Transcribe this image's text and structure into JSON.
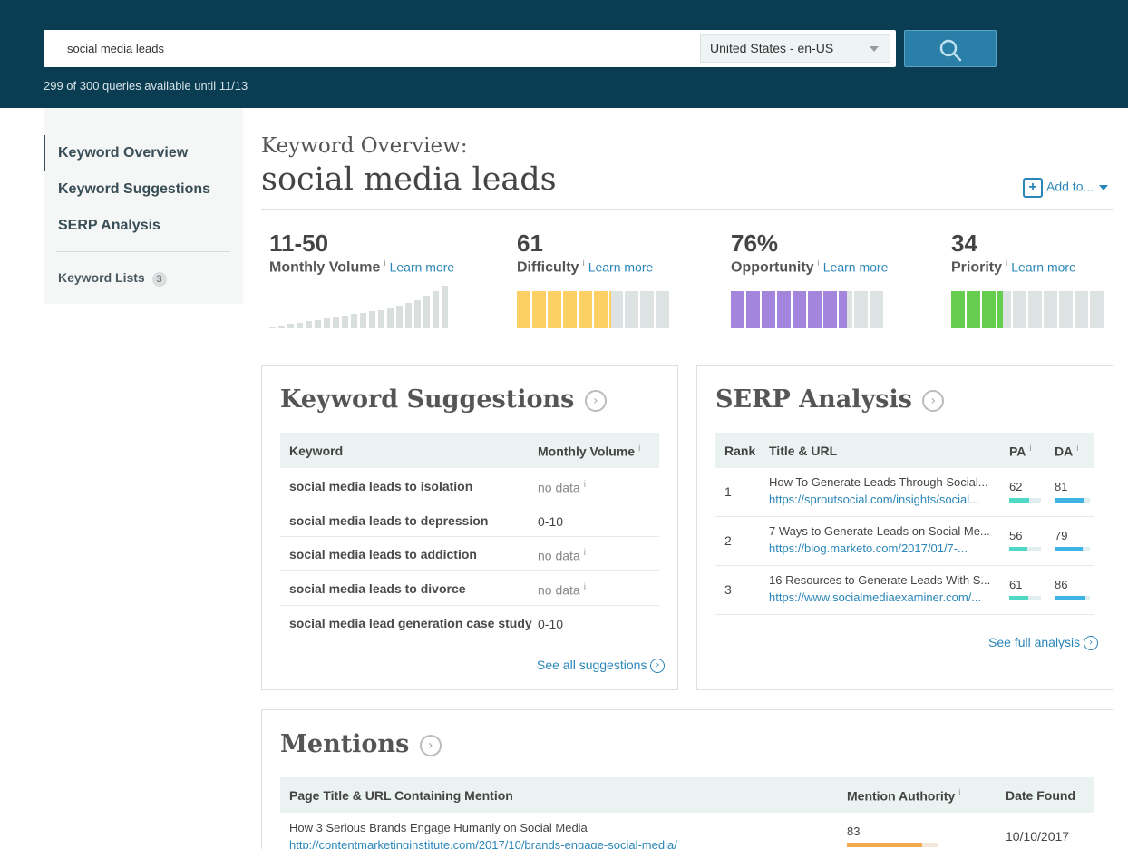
{
  "header": {
    "search_value": "social media leads",
    "locale": "United States - en-US",
    "quota": "299 of 300 queries available until 11/13"
  },
  "sidebar": {
    "items": [
      {
        "label": "Keyword Overview",
        "active": true
      },
      {
        "label": "Keyword Suggestions"
      },
      {
        "label": "SERP Analysis"
      }
    ],
    "lists_label": "Keyword Lists",
    "lists_count": "3"
  },
  "overview": {
    "label": "Keyword Overview:",
    "keyword": "social media leads",
    "add_to": "Add to..."
  },
  "metrics": {
    "info": "i",
    "learn_more": "Learn more",
    "volume": {
      "value": "11-50",
      "label": "Monthly Volume"
    },
    "difficulty": {
      "value": "61",
      "label": "Difficulty",
      "level": 0.61,
      "color": "#fdd065"
    },
    "opportunity": {
      "value": "76%",
      "label": "Opportunity",
      "level": 0.76,
      "color": "#a485de"
    },
    "priority": {
      "value": "34",
      "label": "Priority",
      "level": 0.34,
      "color": "#67cd4f"
    },
    "volume_trend": [
      1,
      2,
      3,
      4,
      5,
      6,
      7,
      8,
      9,
      10,
      11,
      12,
      13,
      14,
      16,
      18,
      20,
      23,
      26,
      30
    ],
    "empty_color": "#dde3e3"
  },
  "suggestions": {
    "title": "Keyword Suggestions",
    "col_keyword": "Keyword",
    "col_volume": "Monthly Volume",
    "rows": [
      {
        "keyword": "social media leads to isolation",
        "volume": "no data",
        "nodata": true
      },
      {
        "keyword": "social media leads to depression",
        "volume": "0-10"
      },
      {
        "keyword": "social media leads to addiction",
        "volume": "no data",
        "nodata": true
      },
      {
        "keyword": "social media leads to divorce",
        "volume": "no data",
        "nodata": true
      },
      {
        "keyword": "social media lead generation case study",
        "volume": "0-10"
      }
    ],
    "see_all": "See all suggestions"
  },
  "serp": {
    "title": "SERP Analysis",
    "col_rank": "Rank",
    "col_title": "Title & URL",
    "col_pa": "PA",
    "col_da": "DA",
    "rows": [
      {
        "rank": "1",
        "title": "How To Generate Leads Through Social...",
        "url": "https://sproutsocial.com/insights/social...",
        "pa": 62,
        "da": 81
      },
      {
        "rank": "2",
        "title": "7 Ways to Generate Leads on Social Me...",
        "url": "https://blog.marketo.com/2017/01/7-...",
        "pa": 56,
        "da": 79
      },
      {
        "rank": "3",
        "title": "16 Resources to Generate Leads With S...",
        "url": "https://www.socialmediaexaminer.com/...",
        "pa": 61,
        "da": 86
      }
    ],
    "see_full": "See full analysis",
    "pa_color": "#4fd8c4",
    "da_color": "#3fb3e3"
  },
  "mentions": {
    "title": "Mentions",
    "col_page": "Page Title & URL Containing Mention",
    "col_authority": "Mention Authority",
    "col_date": "Date Found",
    "rows": [
      {
        "title": "How 3 Serious Brands Engage Humanly on Social Media",
        "url": "http://contentmarketinginstitute.com/2017/10/brands-engage-social-media/",
        "authority": 83,
        "date": "10/10/2017"
      }
    ],
    "authority_color": "#f4a84f"
  }
}
